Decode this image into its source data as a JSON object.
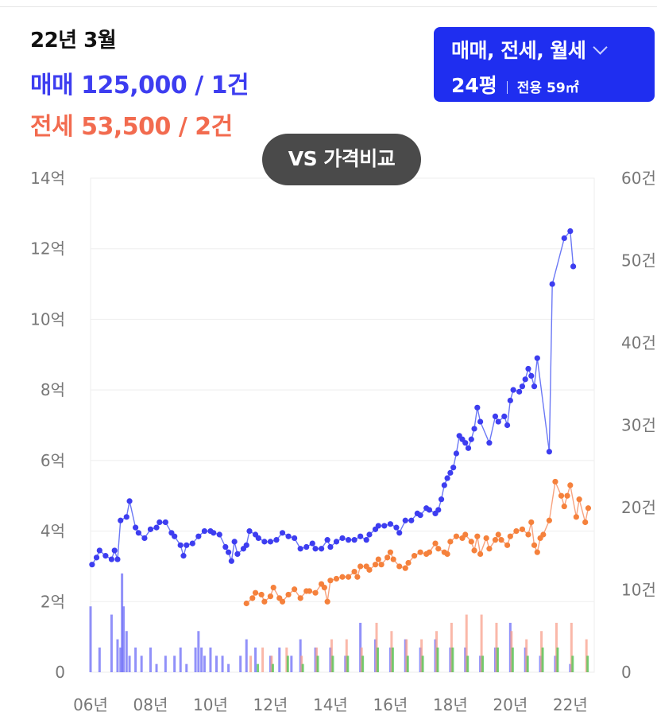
{
  "header": {
    "date": "22년 3월",
    "sale_line": "매매 125,000 / 1건",
    "jeonse_line": "전세 53,500 / 2건"
  },
  "filter": {
    "types_label": "매매, 전세, 월세",
    "area_label": "24평",
    "exclusive_label": "전용 59㎡",
    "icon": "chevron-down-icon"
  },
  "compare_button": {
    "label": "VS 가격비교"
  },
  "colors": {
    "sale": "#3d3df0",
    "sale_line": "#6b78f5",
    "jeonse": "#f5813c",
    "jeonse_line": "#f7a27e",
    "sale_volume": "#6c6cf7",
    "jeonse_volume": "#f8a08c",
    "rent_volume": "#4cc24c",
    "button": "#1f2ef0"
  },
  "chart_data": {
    "type": "line",
    "x_unit": "year",
    "xlim": [
      2006,
      2022.8
    ],
    "ylim_left": [
      0,
      14
    ],
    "ylim_right": [
      0,
      60
    ],
    "x_ticks": [
      {
        "v": 2006,
        "label": "06년"
      },
      {
        "v": 2008,
        "label": "08년"
      },
      {
        "v": 2010,
        "label": "10년"
      },
      {
        "v": 2012,
        "label": "12년"
      },
      {
        "v": 2014,
        "label": "14년"
      },
      {
        "v": 2016,
        "label": "16년"
      },
      {
        "v": 2018,
        "label": "18년"
      },
      {
        "v": 2020,
        "label": "20년"
      },
      {
        "v": 2022,
        "label": "22년"
      }
    ],
    "y_ticks_left": [
      {
        "v": 0,
        "label": "0"
      },
      {
        "v": 2,
        "label": "2억"
      },
      {
        "v": 4,
        "label": "4억"
      },
      {
        "v": 6,
        "label": "6억"
      },
      {
        "v": 8,
        "label": "8억"
      },
      {
        "v": 10,
        "label": "10억"
      },
      {
        "v": 12,
        "label": "12억"
      },
      {
        "v": 14,
        "label": "14억"
      }
    ],
    "y_ticks_right": [
      {
        "v": 0,
        "label": "0"
      },
      {
        "v": 10,
        "label": "10건"
      },
      {
        "v": 20,
        "label": "20건"
      },
      {
        "v": 30,
        "label": "30건"
      },
      {
        "v": 40,
        "label": "40건"
      },
      {
        "v": 50,
        "label": "50건"
      },
      {
        "v": 60,
        "label": "60건"
      }
    ],
    "grid": true,
    "series": [
      {
        "name": "매매",
        "color": "#3d3df0",
        "points": [
          [
            2006.05,
            3.05
          ],
          [
            2006.2,
            3.25
          ],
          [
            2006.3,
            3.45
          ],
          [
            2006.5,
            3.3
          ],
          [
            2006.7,
            3.2
          ],
          [
            2006.8,
            3.45
          ],
          [
            2006.9,
            3.2
          ],
          [
            2007.0,
            4.3
          ],
          [
            2007.2,
            4.4
          ],
          [
            2007.3,
            4.85
          ],
          [
            2007.5,
            4.1
          ],
          [
            2007.6,
            3.95
          ],
          [
            2007.8,
            3.8
          ],
          [
            2008.0,
            4.05
          ],
          [
            2008.2,
            4.1
          ],
          [
            2008.3,
            4.25
          ],
          [
            2008.5,
            4.25
          ],
          [
            2008.7,
            3.95
          ],
          [
            2008.8,
            3.85
          ],
          [
            2009.0,
            3.6
          ],
          [
            2009.1,
            3.3
          ],
          [
            2009.2,
            3.6
          ],
          [
            2009.4,
            3.65
          ],
          [
            2009.6,
            3.85
          ],
          [
            2009.8,
            4.0
          ],
          [
            2010.0,
            4.0
          ],
          [
            2010.1,
            3.95
          ],
          [
            2010.3,
            3.9
          ],
          [
            2010.5,
            3.55
          ],
          [
            2010.6,
            3.4
          ],
          [
            2010.7,
            3.15
          ],
          [
            2010.8,
            3.7
          ],
          [
            2010.9,
            3.35
          ],
          [
            2011.1,
            3.5
          ],
          [
            2011.2,
            3.6
          ],
          [
            2011.3,
            4.0
          ],
          [
            2011.5,
            3.9
          ],
          [
            2011.6,
            3.8
          ],
          [
            2011.8,
            3.7
          ],
          [
            2012.0,
            3.7
          ],
          [
            2012.2,
            3.75
          ],
          [
            2012.4,
            3.95
          ],
          [
            2012.6,
            3.85
          ],
          [
            2012.8,
            3.8
          ],
          [
            2013.0,
            3.5
          ],
          [
            2013.2,
            3.55
          ],
          [
            2013.4,
            3.65
          ],
          [
            2013.5,
            3.5
          ],
          [
            2013.7,
            3.5
          ],
          [
            2013.9,
            3.75
          ],
          [
            2014.0,
            3.55
          ],
          [
            2014.2,
            3.7
          ],
          [
            2014.4,
            3.8
          ],
          [
            2014.6,
            3.75
          ],
          [
            2014.8,
            3.75
          ],
          [
            2015.0,
            3.85
          ],
          [
            2015.2,
            3.75
          ],
          [
            2015.3,
            3.9
          ],
          [
            2015.5,
            4.05
          ],
          [
            2015.6,
            4.15
          ],
          [
            2015.8,
            4.15
          ],
          [
            2016.0,
            4.2
          ],
          [
            2016.2,
            4.1
          ],
          [
            2016.3,
            3.95
          ],
          [
            2016.5,
            4.3
          ],
          [
            2016.7,
            4.3
          ],
          [
            2016.9,
            4.5
          ],
          [
            2017.0,
            4.45
          ],
          [
            2017.2,
            4.65
          ],
          [
            2017.3,
            4.6
          ],
          [
            2017.5,
            4.5
          ],
          [
            2017.6,
            4.6
          ],
          [
            2017.7,
            4.9
          ],
          [
            2017.8,
            5.3
          ],
          [
            2017.9,
            5.5
          ],
          [
            2018.0,
            5.65
          ],
          [
            2018.1,
            5.8
          ],
          [
            2018.2,
            6.2
          ],
          [
            2018.3,
            6.7
          ],
          [
            2018.4,
            6.6
          ],
          [
            2018.5,
            6.5
          ],
          [
            2018.6,
            6.35
          ],
          [
            2018.7,
            6.6
          ],
          [
            2018.8,
            6.9
          ],
          [
            2018.9,
            7.5
          ],
          [
            2019.0,
            7.1
          ],
          [
            2019.3,
            6.5
          ],
          [
            2019.5,
            7.25
          ],
          [
            2019.6,
            7.1
          ],
          [
            2019.8,
            7.25
          ],
          [
            2019.9,
            7.0
          ],
          [
            2020.0,
            7.7
          ],
          [
            2020.1,
            8.0
          ],
          [
            2020.3,
            7.95
          ],
          [
            2020.4,
            8.1
          ],
          [
            2020.5,
            8.3
          ],
          [
            2020.6,
            8.6
          ],
          [
            2020.7,
            8.4
          ],
          [
            2020.8,
            8.1
          ],
          [
            2020.9,
            8.9
          ],
          [
            2021.3,
            6.25
          ],
          [
            2021.4,
            11.0
          ],
          [
            2021.8,
            12.3
          ],
          [
            2022.0,
            12.5
          ],
          [
            2022.1,
            11.5
          ]
        ]
      },
      {
        "name": "전세",
        "color": "#f5813c",
        "points": [
          [
            2011.2,
            1.95
          ],
          [
            2011.4,
            2.1
          ],
          [
            2011.5,
            2.25
          ],
          [
            2011.7,
            2.2
          ],
          [
            2011.8,
            2.0
          ],
          [
            2012.0,
            2.15
          ],
          [
            2012.1,
            2.4
          ],
          [
            2012.3,
            2.1
          ],
          [
            2012.4,
            2.0
          ],
          [
            2012.6,
            2.2
          ],
          [
            2012.8,
            2.35
          ],
          [
            2013.0,
            2.1
          ],
          [
            2013.2,
            2.3
          ],
          [
            2013.3,
            2.3
          ],
          [
            2013.5,
            2.25
          ],
          [
            2013.7,
            2.5
          ],
          [
            2013.8,
            2.4
          ],
          [
            2013.9,
            2.0
          ],
          [
            2014.0,
            2.6
          ],
          [
            2014.2,
            2.65
          ],
          [
            2014.4,
            2.7
          ],
          [
            2014.6,
            2.7
          ],
          [
            2014.8,
            2.85
          ],
          [
            2014.9,
            2.7
          ],
          [
            2015.0,
            3.0
          ],
          [
            2015.2,
            3.0
          ],
          [
            2015.3,
            2.9
          ],
          [
            2015.5,
            3.05
          ],
          [
            2015.6,
            3.2
          ],
          [
            2015.7,
            3.05
          ],
          [
            2015.9,
            3.25
          ],
          [
            2016.0,
            3.4
          ],
          [
            2016.1,
            3.2
          ],
          [
            2016.3,
            3.0
          ],
          [
            2016.5,
            2.95
          ],
          [
            2016.6,
            3.1
          ],
          [
            2016.8,
            3.3
          ],
          [
            2017.0,
            3.4
          ],
          [
            2017.2,
            3.35
          ],
          [
            2017.3,
            3.4
          ],
          [
            2017.5,
            3.65
          ],
          [
            2017.6,
            3.5
          ],
          [
            2017.8,
            3.4
          ],
          [
            2017.9,
            3.35
          ],
          [
            2018.0,
            3.7
          ],
          [
            2018.2,
            3.85
          ],
          [
            2018.4,
            3.8
          ],
          [
            2018.5,
            3.9
          ],
          [
            2018.7,
            3.7
          ],
          [
            2018.8,
            3.45
          ],
          [
            2018.9,
            3.85
          ],
          [
            2019.0,
            3.35
          ],
          [
            2019.2,
            3.8
          ],
          [
            2019.3,
            3.5
          ],
          [
            2019.5,
            3.75
          ],
          [
            2019.6,
            3.9
          ],
          [
            2019.7,
            3.75
          ],
          [
            2019.9,
            3.6
          ],
          [
            2020.0,
            3.85
          ],
          [
            2020.2,
            4.0
          ],
          [
            2020.4,
            4.05
          ],
          [
            2020.6,
            3.9
          ],
          [
            2020.7,
            4.25
          ],
          [
            2020.8,
            3.6
          ],
          [
            2020.9,
            3.4
          ],
          [
            2021.0,
            3.8
          ],
          [
            2021.1,
            3.9
          ],
          [
            2021.3,
            4.3
          ],
          [
            2021.5,
            5.4
          ],
          [
            2021.7,
            5.0
          ],
          [
            2021.8,
            4.7
          ],
          [
            2021.9,
            5.0
          ],
          [
            2022.0,
            5.3
          ],
          [
            2022.2,
            4.4
          ],
          [
            2022.3,
            4.9
          ],
          [
            2022.5,
            4.25
          ],
          [
            2022.6,
            4.65
          ]
        ]
      }
    ],
    "volume": [
      {
        "name": "매매",
        "color": "#6c6cf7",
        "bars": [
          [
            2006.0,
            8
          ],
          [
            2006.3,
            3
          ],
          [
            2006.7,
            7
          ],
          [
            2006.9,
            4
          ],
          [
            2007.0,
            3
          ],
          [
            2007.05,
            12
          ],
          [
            2007.1,
            8
          ],
          [
            2007.2,
            5
          ],
          [
            2007.3,
            2
          ],
          [
            2007.5,
            3
          ],
          [
            2007.7,
            2
          ],
          [
            2008.0,
            3
          ],
          [
            2008.2,
            1
          ],
          [
            2008.5,
            2
          ],
          [
            2008.8,
            2
          ],
          [
            2009.0,
            3
          ],
          [
            2009.2,
            1
          ],
          [
            2009.5,
            3
          ],
          [
            2009.6,
            5
          ],
          [
            2009.7,
            3
          ],
          [
            2009.8,
            2
          ],
          [
            2010.0,
            3
          ],
          [
            2010.2,
            2
          ],
          [
            2010.4,
            2
          ],
          [
            2010.6,
            1
          ],
          [
            2011.0,
            2
          ],
          [
            2011.2,
            4
          ],
          [
            2011.5,
            3
          ],
          [
            2012.0,
            2
          ],
          [
            2012.3,
            3
          ],
          [
            2012.7,
            2
          ],
          [
            2013.0,
            4
          ],
          [
            2013.5,
            3
          ],
          [
            2014.0,
            3
          ],
          [
            2014.5,
            2
          ],
          [
            2015.0,
            6
          ],
          [
            2015.5,
            4
          ],
          [
            2016.0,
            3
          ],
          [
            2016.5,
            4
          ],
          [
            2017.0,
            3
          ],
          [
            2017.5,
            4
          ],
          [
            2018.0,
            3
          ],
          [
            2018.5,
            3
          ],
          [
            2019.0,
            2
          ],
          [
            2019.5,
            3
          ],
          [
            2020.0,
            6
          ],
          [
            2020.5,
            3
          ],
          [
            2021.0,
            2
          ],
          [
            2021.5,
            2
          ],
          [
            2022.0,
            1
          ]
        ]
      },
      {
        "name": "전세",
        "color": "#f8a08c",
        "bars": [
          [
            2011.3,
            2
          ],
          [
            2011.7,
            3
          ],
          [
            2012.0,
            2
          ],
          [
            2012.5,
            3
          ],
          [
            2013.0,
            2
          ],
          [
            2013.5,
            3
          ],
          [
            2014.0,
            4
          ],
          [
            2014.5,
            4
          ],
          [
            2015.0,
            3
          ],
          [
            2015.5,
            6
          ],
          [
            2016.0,
            5
          ],
          [
            2016.5,
            4
          ],
          [
            2017.0,
            4
          ],
          [
            2017.5,
            5
          ],
          [
            2018.0,
            6
          ],
          [
            2018.5,
            7
          ],
          [
            2019.0,
            7
          ],
          [
            2019.5,
            6
          ],
          [
            2020.0,
            5
          ],
          [
            2020.5,
            4
          ],
          [
            2021.0,
            5
          ],
          [
            2021.5,
            6
          ],
          [
            2022.0,
            6
          ],
          [
            2022.5,
            4
          ]
        ]
      },
      {
        "name": "월세",
        "color": "#4cc24c",
        "bars": [
          [
            2011.5,
            1
          ],
          [
            2012.0,
            1
          ],
          [
            2012.5,
            2
          ],
          [
            2013.0,
            1
          ],
          [
            2013.5,
            2
          ],
          [
            2014.0,
            2
          ],
          [
            2014.5,
            2
          ],
          [
            2015.0,
            2
          ],
          [
            2015.5,
            3
          ],
          [
            2016.0,
            3
          ],
          [
            2016.5,
            2
          ],
          [
            2017.0,
            2
          ],
          [
            2017.5,
            3
          ],
          [
            2018.0,
            3
          ],
          [
            2018.5,
            2
          ],
          [
            2019.0,
            2
          ],
          [
            2019.5,
            3
          ],
          [
            2020.0,
            3
          ],
          [
            2020.5,
            2
          ],
          [
            2021.0,
            3
          ],
          [
            2021.5,
            3
          ],
          [
            2022.0,
            2
          ],
          [
            2022.5,
            2
          ]
        ]
      }
    ]
  }
}
